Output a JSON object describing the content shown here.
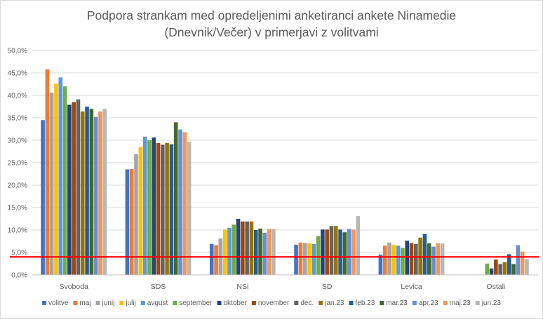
{
  "chart_data": {
    "type": "bar",
    "title_line1": "Podpora strankam med opredeljenimi anketiranci ankete Ninamedie",
    "title_line2": "(Dnevnik/Večer) v primerjavi z volitvami",
    "categories": [
      "Svoboda",
      "SDS",
      "NSi",
      "SD",
      "Levica",
      "Ostali"
    ],
    "ylim": [
      0,
      50
    ],
    "yticks": [
      "0,0%",
      "5,0%",
      "10,0%",
      "15,0%",
      "20,0%",
      "25,0%",
      "30,0%",
      "35,0%",
      "40,0%",
      "45,0%",
      "50,0%"
    ],
    "grid": true,
    "legend_position": "bottom",
    "reference_line": {
      "value": 4.0,
      "color": "#ff0000"
    },
    "series": [
      {
        "name": "volitve",
        "color": "#4472c4",
        "values": [
          34.5,
          23.5,
          6.9,
          6.7,
          4.5,
          0
        ]
      },
      {
        "name": "maj",
        "color": "#ed7d31",
        "values": [
          45.8,
          23.6,
          6.6,
          7.2,
          6.5,
          0
        ]
      },
      {
        "name": "junij",
        "color": "#a5a5a5",
        "values": [
          40.6,
          26.9,
          8.1,
          7.1,
          7.2,
          0
        ]
      },
      {
        "name": "julij",
        "color": "#ffc000",
        "values": [
          42.6,
          28.5,
          10.1,
          7.0,
          6.7,
          0
        ]
      },
      {
        "name": "avgust",
        "color": "#5b9bd5",
        "values": [
          44.0,
          30.8,
          10.5,
          6.9,
          6.5,
          0
        ]
      },
      {
        "name": "september",
        "color": "#70ad47",
        "values": [
          42.0,
          30.0,
          11.2,
          8.6,
          6.0,
          2.5
        ]
      },
      {
        "name": "oktober",
        "color": "#264478",
        "values": [
          37.9,
          30.6,
          12.5,
          10.1,
          7.6,
          1.4
        ]
      },
      {
        "name": "november",
        "color": "#9e480e",
        "values": [
          38.5,
          29.4,
          11.9,
          10.1,
          7.1,
          3.4
        ]
      },
      {
        "name": "dec.",
        "color": "#636363",
        "values": [
          39.1,
          29.0,
          11.9,
          10.9,
          6.9,
          2.4
        ]
      },
      {
        "name": "jan.23",
        "color": "#997300",
        "values": [
          36.4,
          29.4,
          11.9,
          10.9,
          8.3,
          2.8
        ]
      },
      {
        "name": "feb.23",
        "color": "#255e91",
        "values": [
          37.5,
          29.1,
          10.0,
          10.1,
          9.1,
          4.6
        ]
      },
      {
        "name": "mar.23",
        "color": "#43682b",
        "values": [
          37.0,
          34.0,
          10.3,
          9.5,
          7.0,
          2.4
        ]
      },
      {
        "name": "apr.23",
        "color": "#698ed0",
        "values": [
          35.2,
          32.4,
          9.4,
          10.2,
          6.3,
          6.6
        ]
      },
      {
        "name": "maj.23",
        "color": "#f1975a",
        "values": [
          36.4,
          31.8,
          10.2,
          10.1,
          7.0,
          5.2
        ]
      },
      {
        "name": "jun.23",
        "color": "#b7b7b7",
        "values": [
          37.0,
          29.6,
          10.2,
          13.1,
          7.0,
          3.5
        ]
      }
    ]
  }
}
